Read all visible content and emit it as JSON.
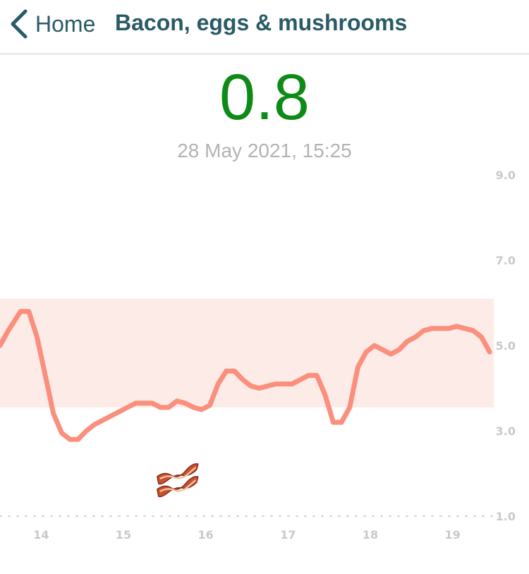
{
  "nav": {
    "back_label": "Home",
    "title": "Bacon, eggs & mushrooms"
  },
  "reading": {
    "value": "0.8",
    "timestamp": "28 May 2021, 15:25",
    "value_color": "#0e8a16"
  },
  "chart_data": {
    "type": "line",
    "title": "",
    "xlabel": "",
    "ylabel": "",
    "xlim": [
      13.5,
      19.5
    ],
    "ylim": [
      1.0,
      9.0
    ],
    "x_ticks": [
      "14",
      "15",
      "16",
      "17",
      "18",
      "19"
    ],
    "y_ticks": [
      "9.0",
      "7.0",
      "5.0",
      "3.0",
      "1.0"
    ],
    "target_range": [
      3.55,
      6.1
    ],
    "line_color": "#fb8f7d",
    "band_color": "#fcebe6",
    "meal_marker": {
      "x": 15.65,
      "icon": "bacon-icon"
    },
    "series": [
      {
        "x": [
          13.5,
          13.6,
          13.75,
          13.85,
          13.95,
          14.05,
          14.15,
          14.25,
          14.35,
          14.45,
          14.55,
          14.65,
          14.75,
          14.85,
          14.95,
          15.05,
          15.15,
          15.25,
          15.35,
          15.45,
          15.55,
          15.65,
          15.75,
          15.85,
          15.95,
          16.05,
          16.15,
          16.25,
          16.35,
          16.45,
          16.55,
          16.65,
          16.75,
          16.85,
          16.95,
          17.05,
          17.15,
          17.25,
          17.35,
          17.45,
          17.55,
          17.65,
          17.75,
          17.85,
          17.95,
          18.05,
          18.15,
          18.25,
          18.35,
          18.45,
          18.55,
          18.65,
          18.75,
          18.85,
          18.95,
          19.05,
          19.15,
          19.25,
          19.35,
          19.45
        ],
        "values": [
          5.0,
          5.35,
          5.8,
          5.8,
          5.2,
          4.3,
          3.4,
          2.95,
          2.8,
          2.8,
          3.0,
          3.15,
          3.25,
          3.35,
          3.45,
          3.55,
          3.65,
          3.65,
          3.65,
          3.55,
          3.55,
          3.7,
          3.65,
          3.55,
          3.5,
          3.6,
          4.1,
          4.4,
          4.4,
          4.2,
          4.05,
          4.0,
          4.05,
          4.1,
          4.1,
          4.1,
          4.2,
          4.3,
          4.3,
          3.85,
          3.2,
          3.2,
          3.55,
          4.5,
          4.85,
          5.0,
          4.9,
          4.8,
          4.9,
          5.1,
          5.2,
          5.35,
          5.4,
          5.4,
          5.4,
          5.45,
          5.4,
          5.35,
          5.2,
          4.85
        ]
      }
    ]
  }
}
